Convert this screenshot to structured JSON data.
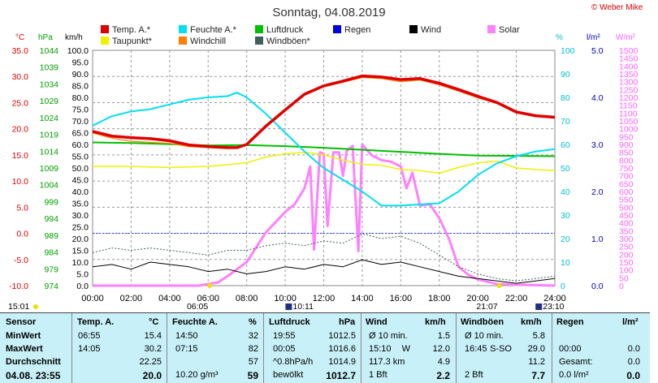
{
  "title": "Sonntag, 04.08.2019",
  "copyright": "© Weber Mike",
  "legend": [
    {
      "name": "Temp. A.*",
      "color": "#e00000"
    },
    {
      "name": "Feuchte A.*",
      "color": "#00e0f0"
    },
    {
      "name": "Luftdruck",
      "color": "#00c000"
    },
    {
      "name": "Regen",
      "color": "#0000e0"
    },
    {
      "name": "Wind",
      "color": "#000000"
    },
    {
      "name": "Solar",
      "color": "#ff80ff"
    },
    {
      "name": "Taupunkt*",
      "color": "#f0f000"
    },
    {
      "name": "Windchill",
      "color": "#ff8000"
    },
    {
      "name": "Windböen*",
      "color": "#406060"
    }
  ],
  "units": {
    "temp": "°C",
    "hpa": "hPa",
    "kmh": "km/h",
    "pct": "%",
    "rain": "l/m²",
    "solar": "W/m²"
  },
  "chart_data": {
    "type": "line",
    "x_ticks": [
      "00:00",
      "02:00",
      "04:00",
      "06:00",
      "08:00",
      "10:00",
      "12:00",
      "14:00",
      "16:00",
      "18:00",
      "20:00",
      "22:00",
      "24:00"
    ],
    "axes": {
      "temp": {
        "min": -10,
        "max": 35,
        "ticks": [
          "-10.0",
          "-5.0",
          "0.0",
          "5.0",
          "10.0",
          "15.0",
          "20.0",
          "25.0",
          "30.0",
          "35.0"
        ]
      },
      "pressure": {
        "min": 974,
        "max": 1044,
        "ticks": [
          "974",
          "979",
          "984",
          "989",
          "994",
          "999",
          "1004",
          "1009",
          "1014",
          "1019",
          "1024",
          "1029",
          "1034",
          "1039",
          "1044"
        ]
      },
      "wind": {
        "min": 0,
        "max": 100,
        "ticks": [
          "0.0",
          "5.0",
          "10.0",
          "15.0",
          "20.0",
          "25.0",
          "30.0",
          "35.0",
          "40.0",
          "45.0",
          "50.0",
          "55.0",
          "60.0",
          "65.0",
          "70.0",
          "75.0",
          "80.0",
          "85.0",
          "90.0",
          "95.0",
          "100.0"
        ]
      },
      "humidity": {
        "min": 0,
        "max": 100,
        "ticks": [
          "0",
          "10",
          "20",
          "30",
          "40",
          "50",
          "60",
          "70",
          "80",
          "90",
          "100"
        ]
      },
      "rain": {
        "min": 0,
        "max": 5,
        "ticks": [
          "0.0",
          "1.0",
          "2.0",
          "3.0",
          "4.0",
          "5.0"
        ]
      },
      "solar": {
        "min": 0,
        "max": 1500,
        "ticks": [
          "0",
          "50",
          "100",
          "150",
          "200",
          "250",
          "300",
          "350",
          "400",
          "450",
          "500",
          "550",
          "600",
          "650",
          "700",
          "750",
          "800",
          "850",
          "900",
          "950",
          "1000",
          "1050",
          "1100",
          "1150",
          "1200",
          "1250",
          "1300",
          "1350",
          "1400",
          "1450",
          "1500"
        ]
      }
    },
    "series": [
      {
        "name": "Temp. A.*",
        "axis": "temp",
        "color": "#e00000",
        "x": [
          0,
          1,
          2,
          3,
          4,
          5,
          6,
          7,
          7.5,
          8,
          9,
          10,
          11,
          12,
          13,
          14,
          15,
          16,
          17,
          18,
          19,
          20,
          21,
          22,
          23,
          24
        ],
        "y": [
          19.5,
          18.6,
          18.3,
          18.1,
          17.7,
          16.9,
          16.6,
          16.4,
          16.4,
          17,
          20.5,
          23.6,
          26.6,
          28.2,
          29.1,
          30.1,
          29.9,
          29.4,
          29.6,
          28.7,
          27.5,
          26.2,
          25,
          23.2,
          22.5,
          22.2
        ]
      },
      {
        "name": "Taupunkt*",
        "axis": "temp",
        "color": "#f0f000",
        "x": [
          0,
          2,
          4,
          6,
          8,
          9,
          10,
          11,
          12,
          13,
          14,
          15,
          16,
          17,
          18,
          19,
          20,
          21,
          22,
          23,
          24
        ],
        "y": [
          12.8,
          12.8,
          12.6,
          12.8,
          13.5,
          14.6,
          15.2,
          15.5,
          15,
          14,
          13.2,
          13,
          12.2,
          12,
          11.5,
          12.6,
          13.5,
          13.8,
          12.5,
          12.2,
          12
        ]
      },
      {
        "name": "Windchill",
        "axis": "temp",
        "color": "#ff8000",
        "x": [
          0,
          1,
          2,
          3,
          4,
          5,
          6,
          7,
          8,
          9,
          10,
          11,
          12,
          13,
          14,
          15,
          16,
          17,
          18,
          19,
          20,
          21,
          22,
          23,
          24
        ],
        "y": [
          19.2,
          18.2,
          17.6,
          17.4,
          17.2,
          16.6,
          16.4,
          16.2,
          16.8,
          20.3,
          23.4,
          26.4,
          28,
          28.9,
          29.8,
          29.6,
          29,
          29.3,
          28.4,
          27.2,
          25.9,
          24.8,
          23,
          22.4,
          22
        ]
      },
      {
        "name": "Feuchte A.*",
        "axis": "humidity",
        "color": "#00e0f0",
        "x": [
          0,
          1,
          2,
          3,
          4,
          5,
          6,
          7,
          7.5,
          8,
          9,
          10,
          11,
          12,
          13,
          14,
          15,
          16,
          17,
          18,
          19,
          20,
          21,
          22,
          23,
          24
        ],
        "y": [
          68,
          72,
          74,
          75,
          77,
          79,
          80,
          80.5,
          82,
          80,
          73,
          65,
          57,
          50,
          45,
          40,
          34,
          34,
          34.5,
          35,
          40,
          47,
          52,
          55,
          57,
          58
        ]
      },
      {
        "name": "Luftdruck",
        "axis": "pressure",
        "color": "#00c000",
        "x": [
          0,
          2,
          4,
          6,
          8,
          10,
          12,
          14,
          16,
          18,
          20,
          22,
          24
        ],
        "y": [
          1016.6,
          1016.4,
          1016.1,
          1015.7,
          1015.8,
          1015.5,
          1015,
          1014.4,
          1013.8,
          1013.2,
          1012.7,
          1012.6,
          1012.5
        ]
      },
      {
        "name": "Wind",
        "axis": "wind",
        "color": "#000000",
        "x": [
          0,
          1,
          2,
          3,
          4,
          5,
          6,
          7,
          8,
          9,
          10,
          11,
          12,
          13,
          14,
          15,
          16,
          17,
          18,
          19,
          20,
          21,
          22,
          23,
          24
        ],
        "y": [
          8,
          9,
          7,
          10,
          9,
          8,
          6,
          7,
          5,
          6,
          8,
          7,
          9,
          8,
          11,
          9,
          10,
          8,
          6,
          4,
          3,
          2,
          1,
          2,
          3
        ]
      },
      {
        "name": "Windböen*",
        "axis": "wind",
        "color": "#406060",
        "x": [
          0,
          1,
          2,
          3,
          4,
          5,
          6,
          7,
          8,
          9,
          10,
          11,
          12,
          13,
          14,
          15,
          16,
          17,
          18,
          19,
          20,
          21,
          22,
          23,
          24
        ],
        "y": [
          14,
          16,
          15,
          16,
          15,
          14,
          13,
          15,
          15,
          17,
          18,
          17,
          19,
          18,
          22,
          20,
          21,
          18,
          13,
          8,
          5,
          3,
          2,
          3,
          4
        ]
      },
      {
        "name": "Solar",
        "axis": "solar",
        "color": "#ff80ff",
        "x": [
          0,
          5.5,
          6.5,
          7,
          8,
          9,
          10,
          10.5,
          11,
          11.3,
          11.5,
          11.8,
          12,
          12.2,
          12.5,
          12.8,
          13,
          13.2,
          13.5,
          13.8,
          14,
          14.2,
          14.5,
          15,
          15.5,
          16,
          16.3,
          16.6,
          17,
          17.5,
          18,
          18.5,
          19,
          19.5,
          20,
          21,
          24
        ],
        "y": [
          0,
          0,
          20,
          60,
          150,
          340,
          470,
          520,
          620,
          760,
          230,
          850,
          840,
          380,
          850,
          850,
          700,
          860,
          890,
          220,
          900,
          870,
          830,
          800,
          790,
          760,
          620,
          720,
          510,
          520,
          430,
          300,
          120,
          70,
          40,
          10,
          0
        ]
      }
    ],
    "markers": {
      "sunrise": "06:05",
      "sunset": "21:07",
      "moonrise": "10:11",
      "moonset": "23:10",
      "start": "15:01"
    }
  },
  "stats": {
    "headers": {
      "sensor": "Sensor",
      "temp": "Temp. A.",
      "temp_u": "°C",
      "hum": "Feuchte A.",
      "hum_u": "%",
      "press": "Luftdruck",
      "press_u": "hPa",
      "wind": "Wind",
      "wind_u": "km/h",
      "gust": "Windböen",
      "gust_u": "km/h",
      "rain": "Regen",
      "rain_u": "l/m²"
    },
    "rows": [
      {
        "label": "MinWert",
        "temp_t": "06:55",
        "temp_v": "15.4",
        "hum_t": "14:50",
        "hum_v": "32",
        "press_t": "19:55",
        "press_v": "1012.5",
        "wind_t": "Ø 10 min.",
        "wind_v": "1.5",
        "gust_t": "Ø 10 min.",
        "gust_v": "5.8",
        "rain_t": "",
        "rain_v": ""
      },
      {
        "label": "MaxWert",
        "temp_t": "14:05",
        "temp_v": "30.2",
        "hum_t": "07:15",
        "hum_v": "82",
        "press_t": "00:05",
        "press_v": "1016.6",
        "wind_t": "15:10",
        "wind_m": "W",
        "wind_v": "12.0",
        "gust_t": "16:45",
        "gust_m": "S-SO",
        "gust_v": "29.0",
        "rain_t": "00:00",
        "rain_v": "0.0"
      },
      {
        "label": "Durchschnitt",
        "temp_t": "",
        "temp_v": "22.25",
        "hum_t": "",
        "hum_v": "57",
        "press_t": "^0.8hPa/h",
        "press_v": "1014.9",
        "wind_t": "117.3 km",
        "wind_v": "4.9",
        "gust_t": "",
        "gust_v": "11.2",
        "rain_t": "Gesamt:",
        "rain_v": "0.0"
      },
      {
        "label": "04.08. 23:55",
        "temp_t": "",
        "temp_v": "20.0",
        "hum_t": "10.20 g/m³",
        "hum_v": "59",
        "press_t": "bewölkt",
        "press_v": "1012.7",
        "wind_t": "1 Bft",
        "wind_v": "2.2",
        "gust_t": "2 Bft",
        "gust_v": "7.7",
        "rain_t": "0.0 l/m²",
        "rain_v": "0.0"
      }
    ]
  }
}
